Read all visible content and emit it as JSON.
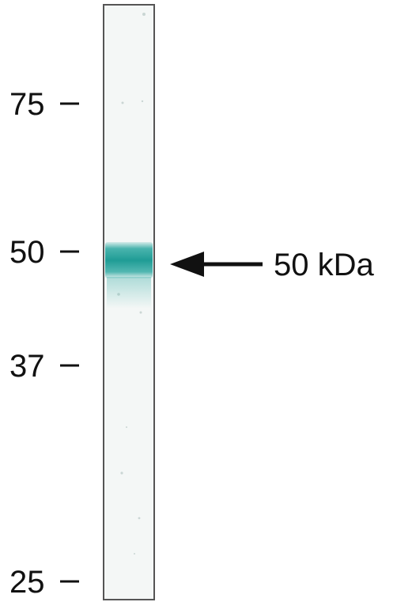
{
  "markers": [
    {
      "label": "75",
      "kda": 75
    },
    {
      "label": "50",
      "kda": 50
    },
    {
      "label": "37",
      "kda": 37
    },
    {
      "label": "25",
      "kda": 25
    }
  ],
  "annotation": {
    "label": "50 kDa"
  },
  "colors": {
    "band": "#2aa7a0",
    "lane_border": "#555555",
    "lane_fill": "#f4f7f6",
    "text": "#111111"
  }
}
